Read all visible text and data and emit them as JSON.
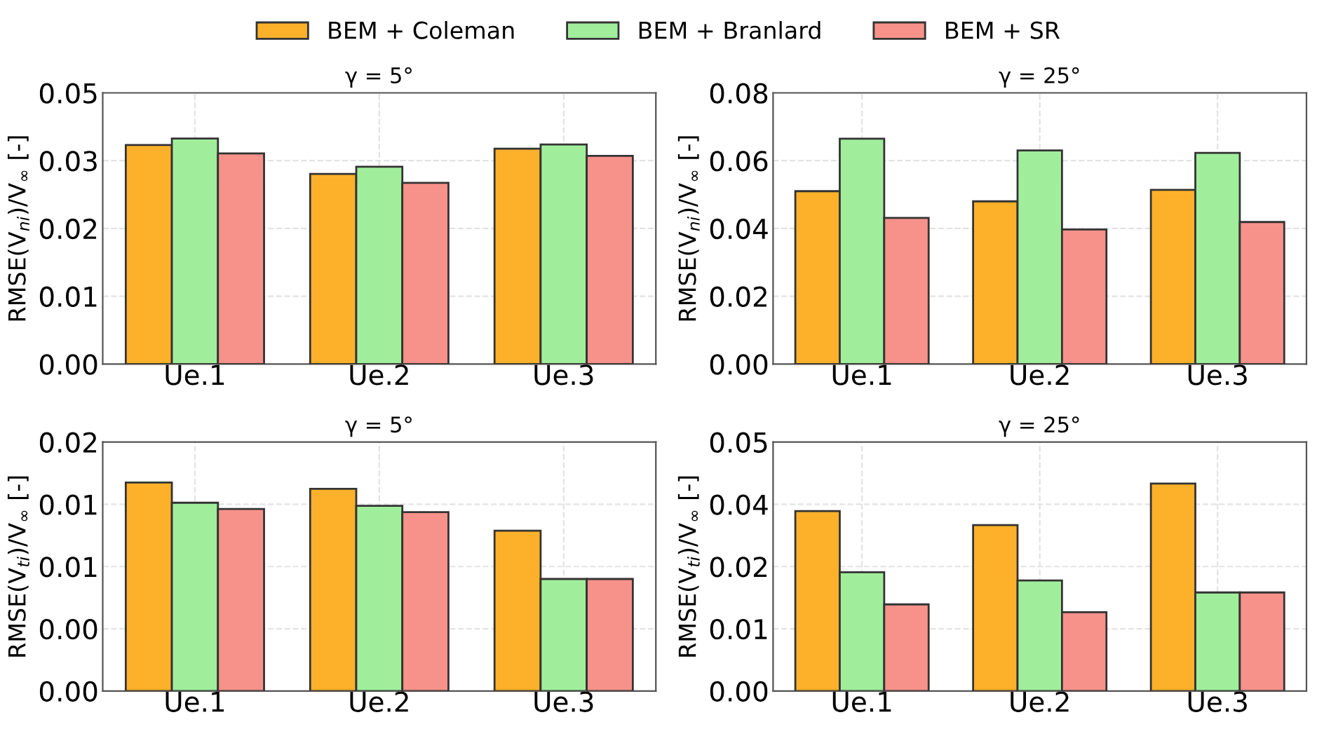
{
  "chart_data": [
    {
      "type": "bar",
      "title": "γ = 5°",
      "ylabel": "RMSE(V$_{ni}$)/V$_{∞}$ [-]",
      "categories": [
        "Ue.1",
        "Ue.2",
        "Ue.3"
      ],
      "legend": "top",
      "grid": true,
      "ylim": [
        0,
        0.0452
      ],
      "yticks": [
        {
          "value": 0,
          "label": "0.00"
        },
        {
          "value": 0.0113,
          "label": "0.01"
        },
        {
          "value": 0.0226,
          "label": "0.02"
        },
        {
          "value": 0.0339,
          "label": "0.03"
        },
        {
          "value": 0.0452,
          "label": "0.05"
        }
      ],
      "series": [
        {
          "name": "BEM + Coleman",
          "color": "#fdb12a",
          "values": [
            0.0365,
            0.0317,
            0.0359
          ]
        },
        {
          "name": "BEM + Branlard",
          "color": "#a0ee9c",
          "values": [
            0.0376,
            0.0329,
            0.0366
          ]
        },
        {
          "name": "BEM + SR",
          "color": "#f7928a",
          "values": [
            0.0351,
            0.0302,
            0.0347
          ]
        }
      ]
    },
    {
      "type": "bar",
      "title": "γ = 25°",
      "ylabel": "RMSE(V$_{ni}$)/V$_{∞}$ [-]",
      "categories": [
        "Ue.1",
        "Ue.2",
        "Ue.3"
      ],
      "grid": true,
      "ylim": [
        0,
        0.08
      ],
      "yticks": [
        {
          "value": 0,
          "label": "0.00"
        },
        {
          "value": 0.02,
          "label": "0.02"
        },
        {
          "value": 0.04,
          "label": "0.04"
        },
        {
          "value": 0.06,
          "label": "0.06"
        },
        {
          "value": 0.08,
          "label": "0.08"
        }
      ],
      "series": [
        {
          "color": "#fdb12a",
          "values": [
            0.051,
            0.048,
            0.0514
          ]
        },
        {
          "color": "#a0ee9c",
          "values": [
            0.0665,
            0.063,
            0.0623
          ]
        },
        {
          "color": "#f7928a",
          "values": [
            0.0431,
            0.0397,
            0.0419
          ]
        }
      ]
    },
    {
      "type": "bar",
      "title": "γ = 5°",
      "ylabel": "RMSE(V$_{ti}$)/V$_{∞}$ [-]",
      "categories": [
        "Ue.1",
        "Ue.2",
        "Ue.3"
      ],
      "grid": true,
      "ylim": [
        0,
        0.016
      ],
      "yticks": [
        {
          "value": 0,
          "label": "0.00"
        },
        {
          "value": 0.004,
          "label": "0.00"
        },
        {
          "value": 0.008,
          "label": "0.01"
        },
        {
          "value": 0.012,
          "label": "0.01"
        },
        {
          "value": 0.016,
          "label": "0.02"
        }
      ],
      "series": [
        {
          "color": "#fdb12a",
          "values": [
            0.0134,
            0.013,
            0.0103
          ]
        },
        {
          "color": "#a0ee9c",
          "values": [
            0.0121,
            0.0119,
            0.0072
          ]
        },
        {
          "color": "#f7928a",
          "values": [
            0.0117,
            0.0115,
            0.0072
          ]
        }
      ]
    },
    {
      "type": "bar",
      "title": "γ = 25°",
      "ylabel": "RMSE(V$_{ti}$)/V$_{∞}$ [-]",
      "categories": [
        "Ue.1",
        "Ue.2",
        "Ue.3"
      ],
      "grid": true,
      "ylim": [
        0,
        0.048
      ],
      "yticks": [
        {
          "value": 0,
          "label": "0.00"
        },
        {
          "value": 0.012,
          "label": "0.01"
        },
        {
          "value": 0.024,
          "label": "0.02"
        },
        {
          "value": 0.036,
          "label": "0.04"
        },
        {
          "value": 0.048,
          "label": "0.05"
        }
      ],
      "series": [
        {
          "color": "#fdb12a",
          "values": [
            0.0347,
            0.032,
            0.04
          ]
        },
        {
          "color": "#a0ee9c",
          "values": [
            0.0229,
            0.0213,
            0.019
          ]
        },
        {
          "color": "#f7928a",
          "values": [
            0.0167,
            0.0152,
            0.019
          ]
        }
      ]
    }
  ]
}
